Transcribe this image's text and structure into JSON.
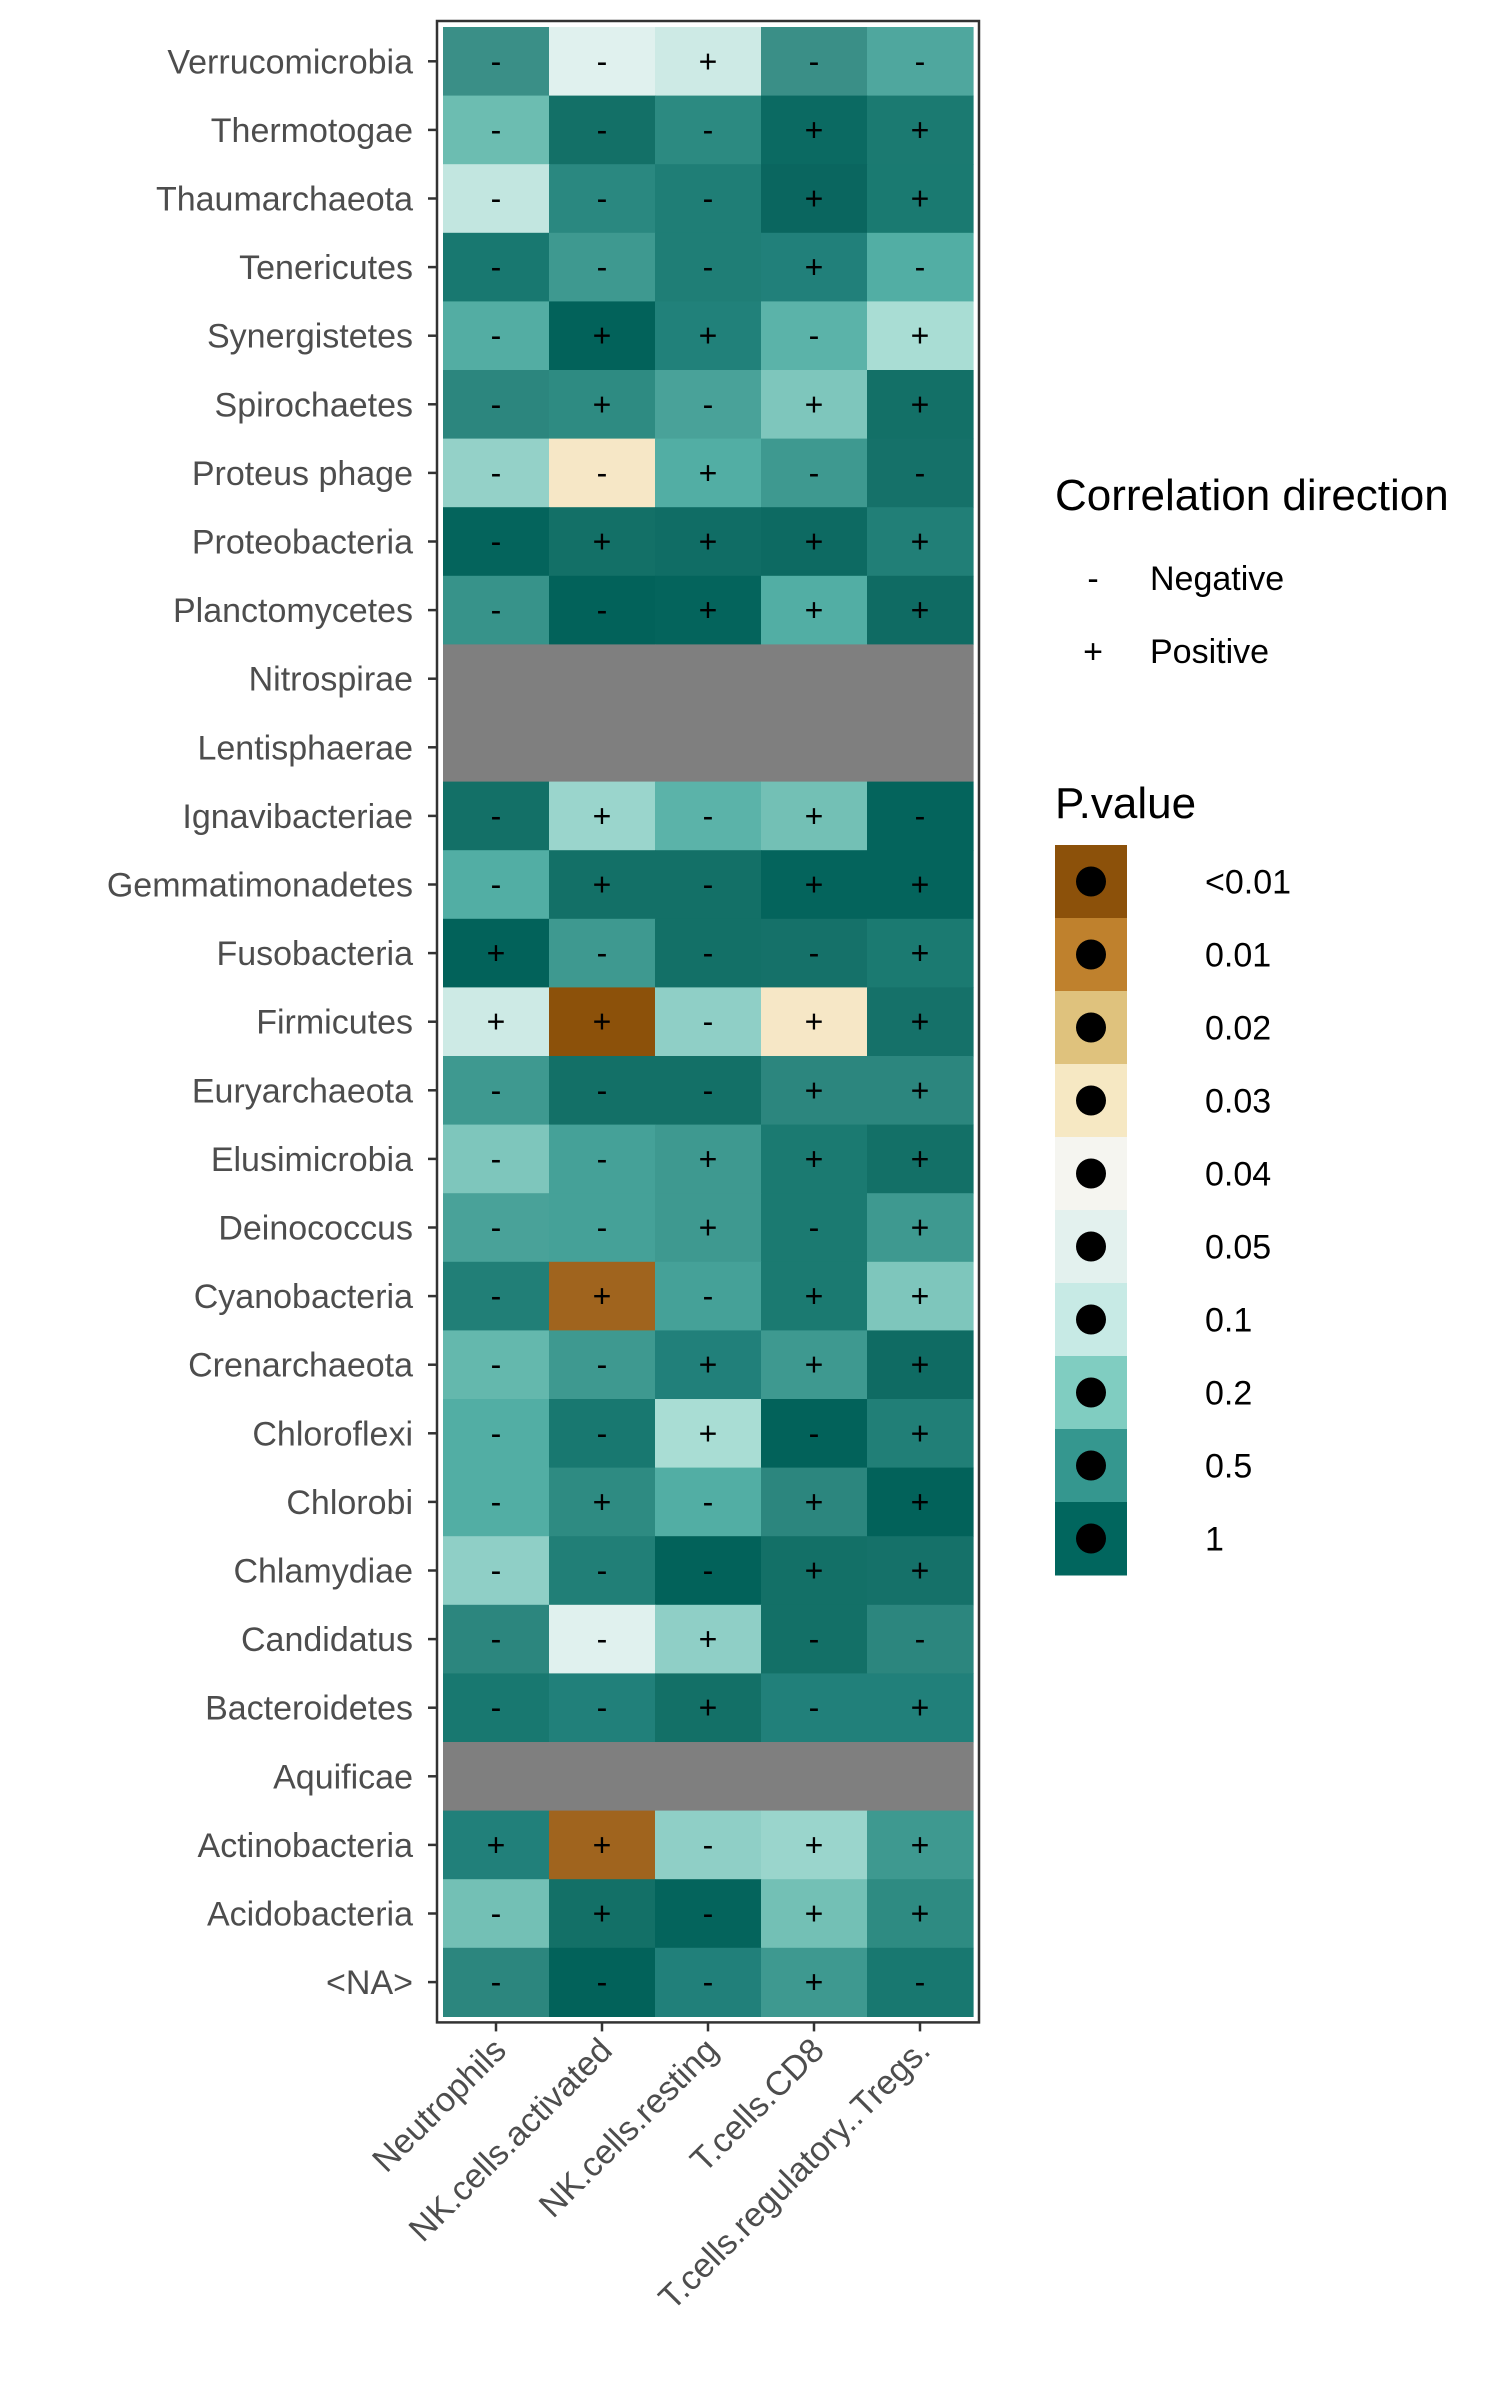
{
  "chart_data": {
    "type": "heatmap",
    "x_categories": [
      "Neutrophils",
      "NK.cells.activated",
      "NK.cells.resting",
      "T.cells.CD8",
      "T.cells.regulatory..Tregs."
    ],
    "y_categories": [
      "Verrucomicrobia",
      "Thermotogae",
      "Thaumarchaeota",
      "Tenericutes",
      "Synergistetes",
      "Spirochaetes",
      "Proteus phage",
      "Proteobacteria",
      "Planctomycetes",
      "Nitrospirae",
      "Lentisphaerae",
      "Ignavibacteriae",
      "Gemmatimonadetes",
      "Fusobacteria",
      "Firmicutes",
      "Euryarchaeota",
      "Elusimicrobia",
      "Deinococcus",
      "Cyanobacteria",
      "Crenarchaeota",
      "Chloroflexi",
      "Chlorobi",
      "Chlamydiae",
      "Candidatus",
      "Bacteroidetes",
      "Aquificae",
      "Actinobacteria",
      "Acidobacteria",
      "<NA>"
    ],
    "pvalue_legend": {
      "title": "P.value",
      "levels": [
        {
          "label": "<0.01",
          "color": "#8c510a"
        },
        {
          "label": "0.01",
          "color": "#bf812d"
        },
        {
          "label": "0.02",
          "color": "#dfc27d"
        },
        {
          "label": "0.03",
          "color": "#f6e8c3"
        },
        {
          "label": "0.04",
          "color": "#f5f5f0"
        },
        {
          "label": "0.05",
          "color": "#e3f1ee"
        },
        {
          "label": "0.1",
          "color": "#c7eae5"
        },
        {
          "label": "0.2",
          "color": "#80cdc1"
        },
        {
          "label": "0.5",
          "color": "#35978f"
        },
        {
          "label": "1",
          "color": "#01665e"
        }
      ]
    },
    "direction_legend": {
      "title": "Correlation direction",
      "items": [
        {
          "symbol": "-",
          "label": "Negative"
        },
        {
          "symbol": "+",
          "label": "Positive"
        }
      ]
    },
    "na_color": "#7f7f7f",
    "cells": [
      [
        {
          "color": "#3a8f87",
          "sign": "-"
        },
        {
          "color": "#e0f1ee",
          "sign": "-"
        },
        {
          "color": "#cdeae5",
          "sign": "+"
        },
        {
          "color": "#3a8f87",
          "sign": "-"
        },
        {
          "color": "#4fa79e",
          "sign": "-"
        }
      ],
      [
        {
          "color": "#6cbdb1",
          "sign": "-"
        },
        {
          "color": "#137067",
          "sign": "-"
        },
        {
          "color": "#2c8a81",
          "sign": "-"
        },
        {
          "color": "#0b6a62",
          "sign": "+"
        },
        {
          "color": "#1b7a71",
          "sign": "+"
        }
      ],
      [
        {
          "color": "#c2e6e0",
          "sign": "-"
        },
        {
          "color": "#2a8880",
          "sign": "-"
        },
        {
          "color": "#1f7e76",
          "sign": "-"
        },
        {
          "color": "#0a665f",
          "sign": "+"
        },
        {
          "color": "#1a7a71",
          "sign": "+"
        }
      ],
      [
        {
          "color": "#187870",
          "sign": "-"
        },
        {
          "color": "#3e9990",
          "sign": "-"
        },
        {
          "color": "#1f7e76",
          "sign": "-"
        },
        {
          "color": "#21807a",
          "sign": "+"
        },
        {
          "color": "#52aea4",
          "sign": "-"
        }
      ],
      [
        {
          "color": "#53ada3",
          "sign": "-"
        },
        {
          "color": "#02625a",
          "sign": "+"
        },
        {
          "color": "#21817a",
          "sign": "+"
        },
        {
          "color": "#5bb3a9",
          "sign": "-"
        },
        {
          "color": "#a9ddd4",
          "sign": "+"
        }
      ],
      [
        {
          "color": "#2c867e",
          "sign": "-"
        },
        {
          "color": "#2e8b82",
          "sign": "+"
        },
        {
          "color": "#49a299",
          "sign": "-"
        },
        {
          "color": "#7ec6bc",
          "sign": "+"
        },
        {
          "color": "#137067",
          "sign": "+"
        }
      ],
      [
        {
          "color": "#94d1c8",
          "sign": "-"
        },
        {
          "color": "#f6e7c6",
          "sign": "-"
        },
        {
          "color": "#52aea4",
          "sign": "+"
        },
        {
          "color": "#3e9990",
          "sign": "-"
        },
        {
          "color": "#157169",
          "sign": "-"
        }
      ],
      [
        {
          "color": "#04645c",
          "sign": "-"
        },
        {
          "color": "#137067",
          "sign": "+"
        },
        {
          "color": "#106d65",
          "sign": "+"
        },
        {
          "color": "#0d6a62",
          "sign": "+"
        },
        {
          "color": "#217f77",
          "sign": "+"
        }
      ],
      [
        {
          "color": "#37938a",
          "sign": "-"
        },
        {
          "color": "#02625a",
          "sign": "-"
        },
        {
          "color": "#04645c",
          "sign": "+"
        },
        {
          "color": "#52aea4",
          "sign": "+"
        },
        {
          "color": "#0f6b63",
          "sign": "+"
        }
      ],
      [
        {
          "color": "#7f7f7f",
          "sign": ""
        },
        {
          "color": "#7f7f7f",
          "sign": ""
        },
        {
          "color": "#7f7f7f",
          "sign": ""
        },
        {
          "color": "#7f7f7f",
          "sign": ""
        },
        {
          "color": "#7f7f7f",
          "sign": ""
        }
      ],
      [
        {
          "color": "#7f7f7f",
          "sign": ""
        },
        {
          "color": "#7f7f7f",
          "sign": ""
        },
        {
          "color": "#7f7f7f",
          "sign": ""
        },
        {
          "color": "#7f7f7f",
          "sign": ""
        },
        {
          "color": "#7f7f7f",
          "sign": ""
        }
      ],
      [
        {
          "color": "#137067",
          "sign": "-"
        },
        {
          "color": "#9ad5cc",
          "sign": "+"
        },
        {
          "color": "#5bb3a9",
          "sign": "-"
        },
        {
          "color": "#73c0b5",
          "sign": "+"
        },
        {
          "color": "#04645c",
          "sign": "-"
        }
      ],
      [
        {
          "color": "#52aea4",
          "sign": "-"
        },
        {
          "color": "#137067",
          "sign": "+"
        },
        {
          "color": "#137067",
          "sign": "-"
        },
        {
          "color": "#04645c",
          "sign": "+"
        },
        {
          "color": "#04645c",
          "sign": "+"
        }
      ],
      [
        {
          "color": "#02625a",
          "sign": "+"
        },
        {
          "color": "#3e9990",
          "sign": "-"
        },
        {
          "color": "#137067",
          "sign": "-"
        },
        {
          "color": "#157169",
          "sign": "-"
        },
        {
          "color": "#1b7a71",
          "sign": "+"
        }
      ],
      [
        {
          "color": "#cdeae5",
          "sign": "+"
        },
        {
          "color": "#8c510a",
          "sign": "+"
        },
        {
          "color": "#8fcfc6",
          "sign": "-"
        },
        {
          "color": "#f6e7c6",
          "sign": "+"
        },
        {
          "color": "#157169",
          "sign": "+"
        }
      ],
      [
        {
          "color": "#3e9990",
          "sign": "-"
        },
        {
          "color": "#137067",
          "sign": "-"
        },
        {
          "color": "#137067",
          "sign": "-"
        },
        {
          "color": "#2c867e",
          "sign": "+"
        },
        {
          "color": "#2c867e",
          "sign": "+"
        }
      ],
      [
        {
          "color": "#7ec6bc",
          "sign": "-"
        },
        {
          "color": "#45a198",
          "sign": "-"
        },
        {
          "color": "#3e9990",
          "sign": "+"
        },
        {
          "color": "#1b7a71",
          "sign": "+"
        },
        {
          "color": "#137067",
          "sign": "+"
        }
      ],
      [
        {
          "color": "#49a299",
          "sign": "-"
        },
        {
          "color": "#45a198",
          "sign": "-"
        },
        {
          "color": "#3e9990",
          "sign": "+"
        },
        {
          "color": "#1b7a71",
          "sign": "-"
        },
        {
          "color": "#3e9990",
          "sign": "+"
        }
      ],
      [
        {
          "color": "#217f77",
          "sign": "-"
        },
        {
          "color": "#a0641e",
          "sign": "+"
        },
        {
          "color": "#45a198",
          "sign": "-"
        },
        {
          "color": "#1b7a71",
          "sign": "+"
        },
        {
          "color": "#7ec6bc",
          "sign": "+"
        }
      ],
      [
        {
          "color": "#64b8ad",
          "sign": "-"
        },
        {
          "color": "#3e9990",
          "sign": "-"
        },
        {
          "color": "#21807a",
          "sign": "+"
        },
        {
          "color": "#3e9990",
          "sign": "+"
        },
        {
          "color": "#0f6b63",
          "sign": "+"
        }
      ],
      [
        {
          "color": "#52aea4",
          "sign": "-"
        },
        {
          "color": "#187870",
          "sign": "-"
        },
        {
          "color": "#a9ddd4",
          "sign": "+"
        },
        {
          "color": "#02625a",
          "sign": "-"
        },
        {
          "color": "#217f77",
          "sign": "+"
        }
      ],
      [
        {
          "color": "#52aea4",
          "sign": "-"
        },
        {
          "color": "#2e8b82",
          "sign": "+"
        },
        {
          "color": "#52aea4",
          "sign": "-"
        },
        {
          "color": "#2c867e",
          "sign": "+"
        },
        {
          "color": "#02625a",
          "sign": "+"
        }
      ],
      [
        {
          "color": "#8fcfc6",
          "sign": "-"
        },
        {
          "color": "#217f77",
          "sign": "-"
        },
        {
          "color": "#02625a",
          "sign": "-"
        },
        {
          "color": "#137067",
          "sign": "+"
        },
        {
          "color": "#157169",
          "sign": "+"
        }
      ],
      [
        {
          "color": "#2c867e",
          "sign": "-"
        },
        {
          "color": "#e0f1ee",
          "sign": "-"
        },
        {
          "color": "#8fcfc6",
          "sign": "+"
        },
        {
          "color": "#137067",
          "sign": "-"
        },
        {
          "color": "#2c867e",
          "sign": "-"
        }
      ],
      [
        {
          "color": "#187870",
          "sign": "-"
        },
        {
          "color": "#21807a",
          "sign": "-"
        },
        {
          "color": "#137067",
          "sign": "+"
        },
        {
          "color": "#21807a",
          "sign": "-"
        },
        {
          "color": "#21807a",
          "sign": "+"
        }
      ],
      [
        {
          "color": "#7f7f7f",
          "sign": ""
        },
        {
          "color": "#7f7f7f",
          "sign": ""
        },
        {
          "color": "#7f7f7f",
          "sign": ""
        },
        {
          "color": "#7f7f7f",
          "sign": ""
        },
        {
          "color": "#7f7f7f",
          "sign": ""
        }
      ],
      [
        {
          "color": "#21807a",
          "sign": "+"
        },
        {
          "color": "#a0641e",
          "sign": "+"
        },
        {
          "color": "#8fcfc6",
          "sign": "-"
        },
        {
          "color": "#9ad5cc",
          "sign": "+"
        },
        {
          "color": "#3e9990",
          "sign": "+"
        }
      ],
      [
        {
          "color": "#73c0b5",
          "sign": "-"
        },
        {
          "color": "#137067",
          "sign": "+"
        },
        {
          "color": "#04645c",
          "sign": "-"
        },
        {
          "color": "#73c0b5",
          "sign": "+"
        },
        {
          "color": "#2e8b82",
          "sign": "+"
        }
      ],
      [
        {
          "color": "#2c867e",
          "sign": "-"
        },
        {
          "color": "#02625a",
          "sign": "-"
        },
        {
          "color": "#21807a",
          "sign": "-"
        },
        {
          "color": "#3e9990",
          "sign": "+"
        },
        {
          "color": "#187870",
          "sign": "-"
        }
      ]
    ]
  }
}
